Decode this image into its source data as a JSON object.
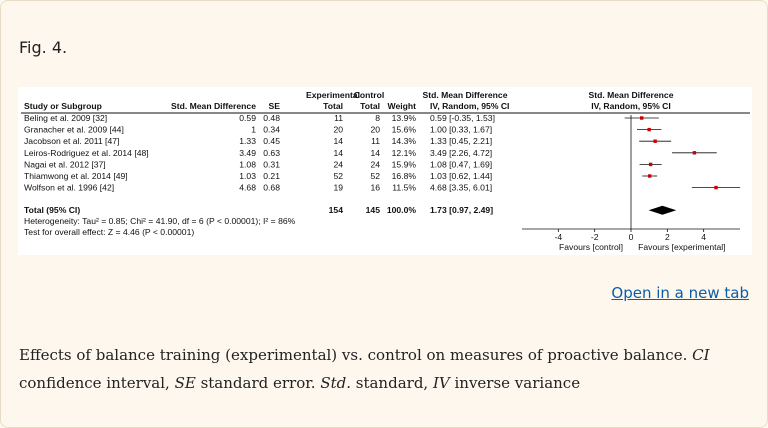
{
  "figure_label": "Fig. 4.",
  "open_link": "Open in a new tab",
  "caption": [
    {
      "t": "Effects of balance training (experimental) vs. control on measures of proactive balance. ",
      "i": false
    },
    {
      "t": "CI",
      "i": true
    },
    {
      "t": " confidence interval, ",
      "i": false
    },
    {
      "t": "SE",
      "i": true
    },
    {
      "t": " standard error. ",
      "i": false
    },
    {
      "t": "Std.",
      "i": true
    },
    {
      "t": " standard, ",
      "i": false
    },
    {
      "t": "IV",
      "i": true
    },
    {
      "t": " inverse variance",
      "i": false
    }
  ],
  "chart_data": {
    "type": "forest",
    "header_top": {
      "experimental": "Experimental",
      "control": "Control",
      "smd": "Std. Mean Difference",
      "plot": "Std. Mean Difference"
    },
    "header_bottom": {
      "study": "Study or Subgroup",
      "smd": "Std. Mean Difference",
      "se": "SE",
      "exp_total": "Total",
      "ctrl_total": "Total",
      "weight": "Weight",
      "ci": "IV, Random, 95% CI",
      "plot": "IV, Random, 95% CI"
    },
    "studies": [
      {
        "name": "Beling et al. 2009 [32]",
        "smd": "0.59",
        "se": "0.48",
        "exp_total": "11",
        "ctrl_total": "8",
        "weight": "13.9%",
        "ci_text": "0.59 [-0.35, 1.53]",
        "est": 0.59,
        "lo": -0.35,
        "hi": 1.53
      },
      {
        "name": "Granacher et al. 2009 [44]",
        "smd": "1",
        "se": "0.34",
        "exp_total": "20",
        "ctrl_total": "20",
        "weight": "15.6%",
        "ci_text": "1.00 [0.33, 1.67]",
        "est": 1.0,
        "lo": 0.33,
        "hi": 1.67
      },
      {
        "name": "Jacobson et al. 2011 [47]",
        "smd": "1.33",
        "se": "0.45",
        "exp_total": "14",
        "ctrl_total": "11",
        "weight": "14.3%",
        "ci_text": "1.33 [0.45, 2.21]",
        "est": 1.33,
        "lo": 0.45,
        "hi": 2.21
      },
      {
        "name": "Leiros-Rodriguez et al. 2014 [48]",
        "smd": "3.49",
        "se": "0.63",
        "exp_total": "14",
        "ctrl_total": "14",
        "weight": "12.1%",
        "ci_text": "3.49 [2.26, 4.72]",
        "est": 3.49,
        "lo": 2.26,
        "hi": 4.72
      },
      {
        "name": "Nagai et al. 2012 [37]",
        "smd": "1.08",
        "se": "0.31",
        "exp_total": "24",
        "ctrl_total": "24",
        "weight": "15.9%",
        "ci_text": "1.08 [0.47, 1.69]",
        "est": 1.08,
        "lo": 0.47,
        "hi": 1.69
      },
      {
        "name": "Thiamwong et al. 2014 [49]",
        "smd": "1.03",
        "se": "0.21",
        "exp_total": "52",
        "ctrl_total": "52",
        "weight": "16.8%",
        "ci_text": "1.03 [0.62, 1.44]",
        "est": 1.03,
        "lo": 0.62,
        "hi": 1.44
      },
      {
        "name": "Wolfson et al. 1996 [42]",
        "smd": "4.68",
        "se": "0.68",
        "exp_total": "19",
        "ctrl_total": "16",
        "weight": "11.5%",
        "ci_text": "4.68 [3.35, 6.01]",
        "est": 4.68,
        "lo": 3.35,
        "hi": 6.01
      }
    ],
    "total": {
      "name": "Total (95% CI)",
      "exp_total": "154",
      "ctrl_total": "145",
      "weight": "100.0%",
      "ci_text": "1.73 [0.97, 2.49]",
      "est": 1.73,
      "lo": 0.97,
      "hi": 2.49
    },
    "heterogeneity": "Heterogeneity: Tau² = 0.85; Chi² = 41.90, df = 6 (P < 0.00001); I² = 86%",
    "overall_effect": "Test for overall effect: Z = 4.46 (P < 0.00001)",
    "x_ticks": [
      -4,
      -2,
      0,
      2,
      4
    ],
    "x_range": [
      -6,
      6
    ],
    "favours_left": "Favours [control]",
    "favours_right": "Favours [experimental]",
    "marker_color": "#cc0000"
  }
}
